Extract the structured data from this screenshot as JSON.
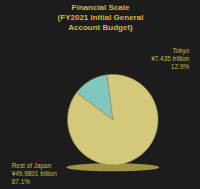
{
  "chart_data": {
    "type": "pie",
    "title": "Financial Scale\n(FY2021 Initial General\nAccount Budget)",
    "categories": [
      "Tokyo",
      "Rest of Japan"
    ],
    "values": [
      12.9,
      87.1
    ],
    "colors": [
      "#7ec8c0",
      "#d4c87a"
    ],
    "annotations": [
      "Tokyo\n¥7.435 trillion\n12.9%",
      "Rest of Japan\n¥49.9801 trillion\n87.1%"
    ]
  }
}
